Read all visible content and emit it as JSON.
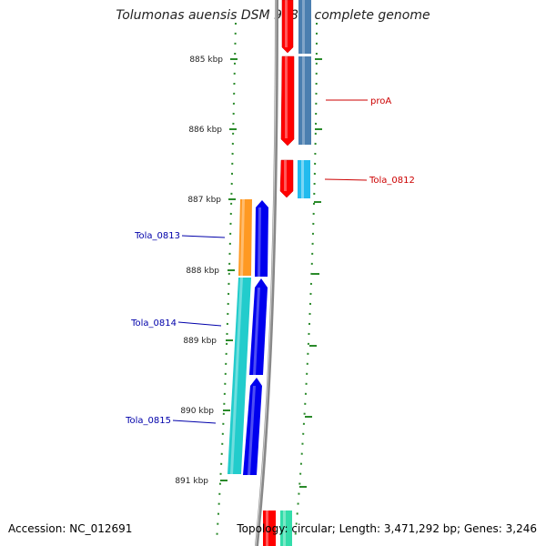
{
  "title": "Tolumonas auensis DSM 9187, complete genome",
  "footer": {
    "accession": "Accession: NC_012691",
    "stats": "Topology: circular; Length: 3,471,292 bp; Genes: 3,246"
  },
  "ticks": [
    "885 kbp",
    "886 kbp",
    "887 kbp",
    "888 kbp",
    "889 kbp",
    "890 kbp",
    "891 kbp"
  ],
  "gene_labels": {
    "proA": "proA",
    "tola_0812": "Tola_0812",
    "tola_0813": "Tola_0813",
    "tola_0814": "Tola_0814",
    "tola_0815": "Tola_0815"
  },
  "colors": {
    "backbone": "#888888",
    "tick": "#2a8a2a",
    "forward_cds": "#ff0000",
    "forward_gene": "#4b7fb0",
    "reverse_cds": "#0000ee",
    "label_forward": "#cc0000",
    "label_reverse": "#0000aa",
    "orange_gene": "#ff9922",
    "cyan_gene": "#22cccc",
    "light_blue_gene": "#22bbee",
    "teal_gene": "#33ddaa"
  }
}
